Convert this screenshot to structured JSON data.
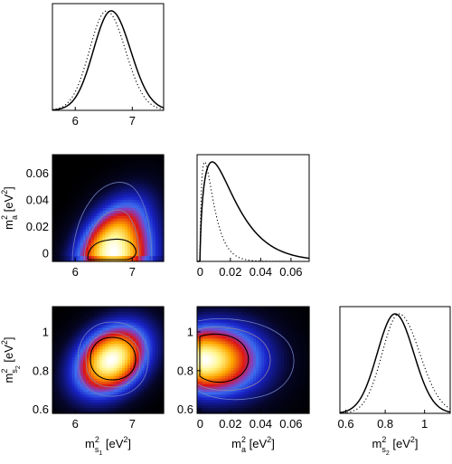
{
  "chart_data": [
    {
      "type": "line",
      "panel": "marginal-ms1",
      "xlim": [
        5.6,
        7.55
      ],
      "xticks": [
        6,
        7
      ],
      "xtick_labels": [
        "6",
        "7"
      ],
      "series": [
        {
          "style": "solid",
          "mean": 6.63,
          "sigma_left": 0.31,
          "sigma_right": 0.34,
          "peak": 1.0
        },
        {
          "style": "dotted",
          "mean": 6.55,
          "sigma_left": 0.3,
          "sigma_right": 0.33,
          "peak": 1.0
        }
      ]
    },
    {
      "type": "heatmap",
      "panel": "joint-ms1-ma",
      "ylabel": "m",
      "ylabel_sup": "2",
      "ylabel_sub": "a",
      "ylabel_unit": " [eV",
      "ylabel_unit_sup": "2",
      "ylabel_unit_end": "]",
      "xlim": [
        5.6,
        7.55
      ],
      "ylim": [
        -0.006,
        0.074
      ],
      "xticks": [
        6,
        7
      ],
      "xtick_labels": [
        "6",
        "7"
      ],
      "yticks": [
        0,
        0.02,
        0.04,
        0.06
      ],
      "ytick_labels": [
        "0",
        "0.02",
        "0.04",
        "0.06"
      ]
    },
    {
      "type": "line",
      "panel": "marginal-ma",
      "xlim": [
        -0.002,
        0.072
      ],
      "xticks": [
        0,
        0.02,
        0.04,
        0.06
      ],
      "xtick_labels": [
        "0",
        "0.02",
        "0.04",
        "0.06"
      ],
      "series": [
        {
          "style": "solid",
          "peak_x": 0.008,
          "peak": 1.0
        },
        {
          "style": "dotted",
          "peak_x": 0.003,
          "peak": 1.0
        }
      ]
    },
    {
      "type": "heatmap",
      "panel": "joint-ms1-ms2",
      "ylabel": "m",
      "ylabel_sup": "2",
      "ylabel_sub": "s",
      "ylabel_subsub": "2",
      "ylabel_unit": " [eV",
      "ylabel_unit_sup": "2",
      "ylabel_unit_end": "]",
      "xlabel": "m",
      "xlabel_sup": "2",
      "xlabel_sub": "s",
      "xlabel_subsub": "1",
      "xlabel_unit": " [eV",
      "xlabel_unit_sup": "2",
      "xlabel_unit_end": "]",
      "xlim": [
        5.6,
        7.55
      ],
      "ylim": [
        0.58,
        1.13
      ],
      "xticks": [
        6,
        7
      ],
      "xtick_labels": [
        "6",
        "7"
      ],
      "yticks": [
        0.6,
        0.8,
        1
      ],
      "ytick_labels": [
        "0.6",
        "0.8",
        "1"
      ]
    },
    {
      "type": "heatmap",
      "panel": "joint-ma-ms2",
      "xlabel": "m",
      "xlabel_sup": "2",
      "xlabel_sub": "a",
      "xlabel_unit": " [eV",
      "xlabel_unit_sup": "2",
      "xlabel_unit_end": "]",
      "xlim": [
        -0.002,
        0.072
      ],
      "ylim": [
        0.58,
        1.13
      ],
      "xticks": [
        0,
        0.02,
        0.04,
        0.06
      ],
      "xtick_labels": [
        "0",
        "0.02",
        "0.04",
        "0.06"
      ],
      "yticks": [
        0.6,
        0.8,
        1
      ],
      "ytick_labels": [
        "0.6",
        "0.8",
        "1"
      ]
    },
    {
      "type": "line",
      "panel": "marginal-ms2",
      "xlabel": "m",
      "xlabel_sup": "2",
      "xlabel_sub": "s",
      "xlabel_subsub": "2",
      "xlabel_unit": " [eV",
      "xlabel_unit_sup": "2",
      "xlabel_unit_end": "]",
      "xlim": [
        0.57,
        1.13
      ],
      "xticks": [
        0.6,
        0.8,
        1
      ],
      "xtick_labels": [
        "0.6",
        "0.8",
        "1"
      ],
      "series": [
        {
          "style": "solid",
          "mean": 0.85,
          "sigma_left": 0.09,
          "sigma_right": 0.095,
          "peak": 1.0
        },
        {
          "style": "dotted",
          "mean": 0.87,
          "sigma_left": 0.085,
          "sigma_right": 0.105,
          "peak": 1.0
        }
      ]
    }
  ]
}
